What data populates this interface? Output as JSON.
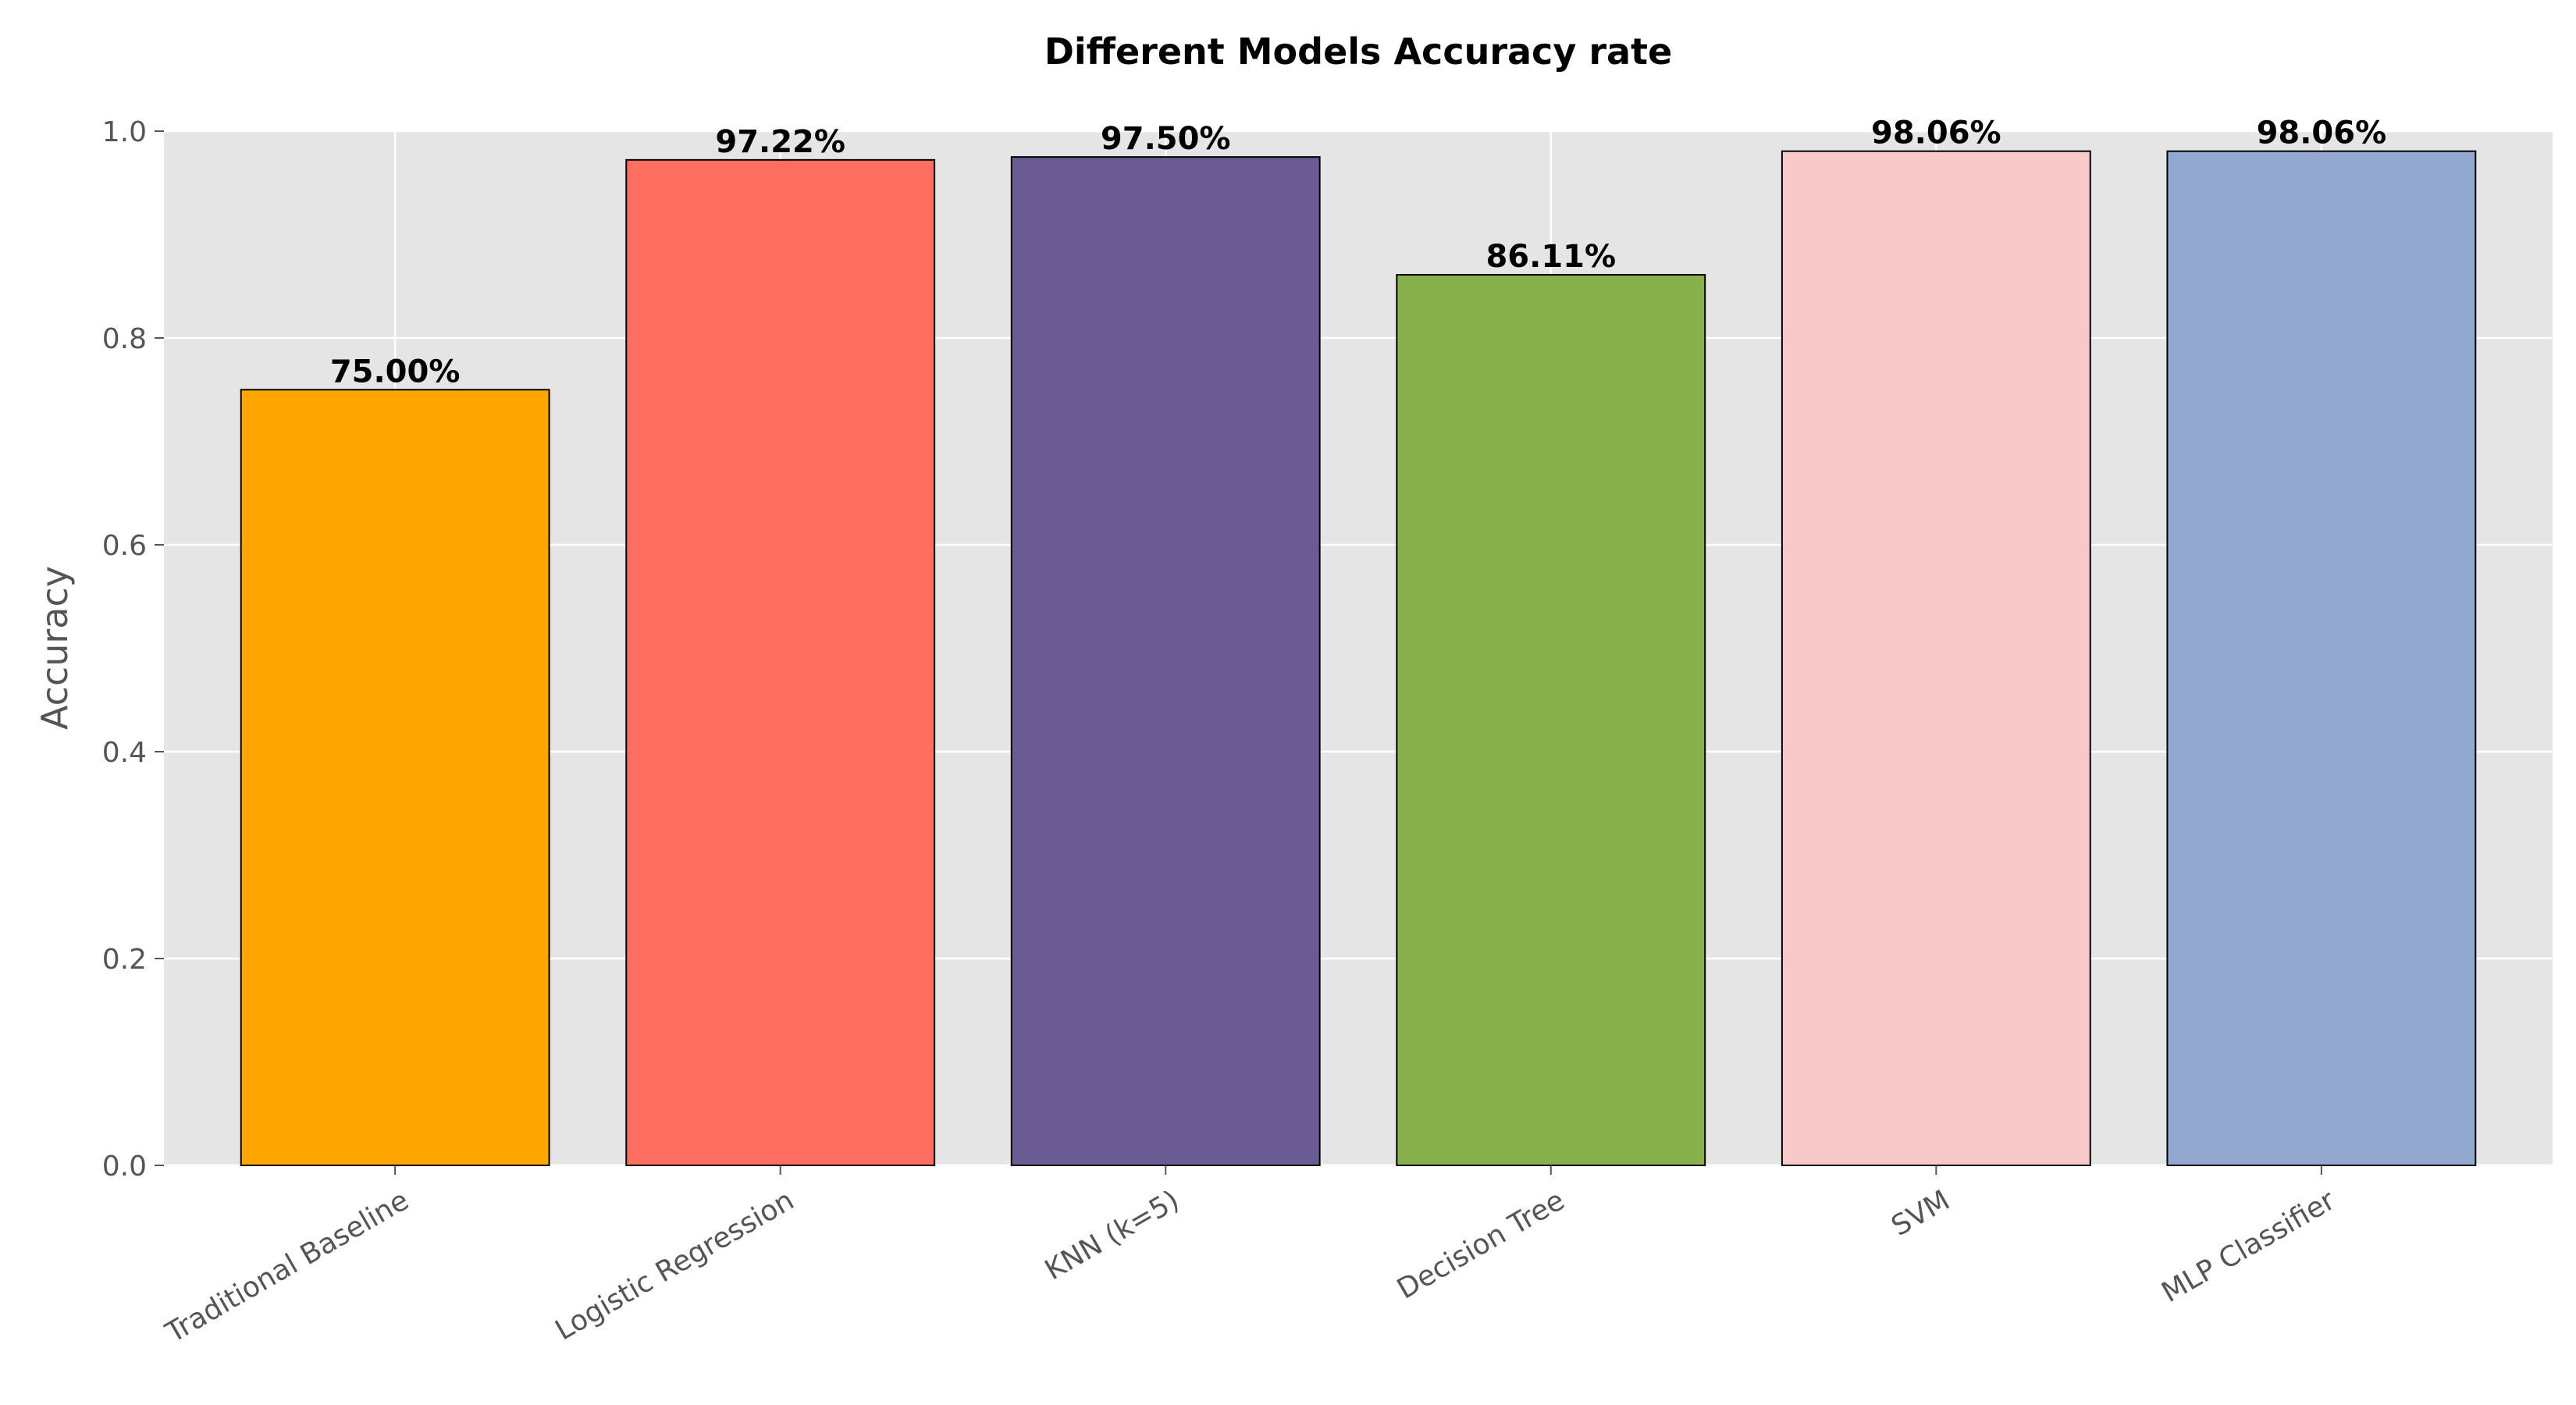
{
  "chart_data": {
    "type": "bar",
    "title": "Different Models Accuracy rate",
    "xlabel": "",
    "ylabel": "Accuracy",
    "ylim": [
      0,
      1.0
    ],
    "yticks": [
      "0.0",
      "0.2",
      "0.4",
      "0.6",
      "0.8",
      "1.0"
    ],
    "grid": true,
    "categories": [
      "Traditional Baseline",
      "Logistic Regression",
      "KNN (k=5)",
      "Decision Tree",
      "SVM",
      "MLP Classifier"
    ],
    "values": [
      0.75,
      0.9722,
      0.975,
      0.8611,
      0.9806,
      0.9806
    ],
    "data_labels": [
      "75.00%",
      "97.22%",
      "97.50%",
      "86.11%",
      "98.06%",
      "98.06%"
    ],
    "colors": [
      "#FFA500",
      "#FF6F61",
      "#6B5B95",
      "#88B04B",
      "#F7CAC9",
      "#92A8D1"
    ],
    "background_color": "#E5E5E5"
  }
}
